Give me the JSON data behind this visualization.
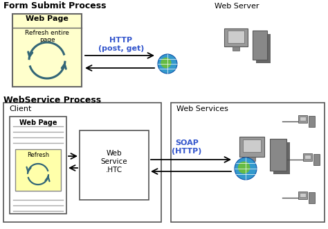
{
  "title1": "Form Submit Process",
  "title2": "WebService Process",
  "bg_color": "#ffffff",
  "http_label": "HTTP\n(post, get)",
  "http_color": "#3355cc",
  "soap_label": "SOAP\n(HTTP)",
  "soap_color": "#3355cc",
  "webserver_label": "Web Server",
  "client_label": "Client",
  "webservices_label": "Web Services",
  "webpage_title": "Web Page",
  "refresh_entire": "Refresh entire\npage",
  "htc_label": "Web\nService\n.HTC",
  "refresh_label": "Refresh"
}
